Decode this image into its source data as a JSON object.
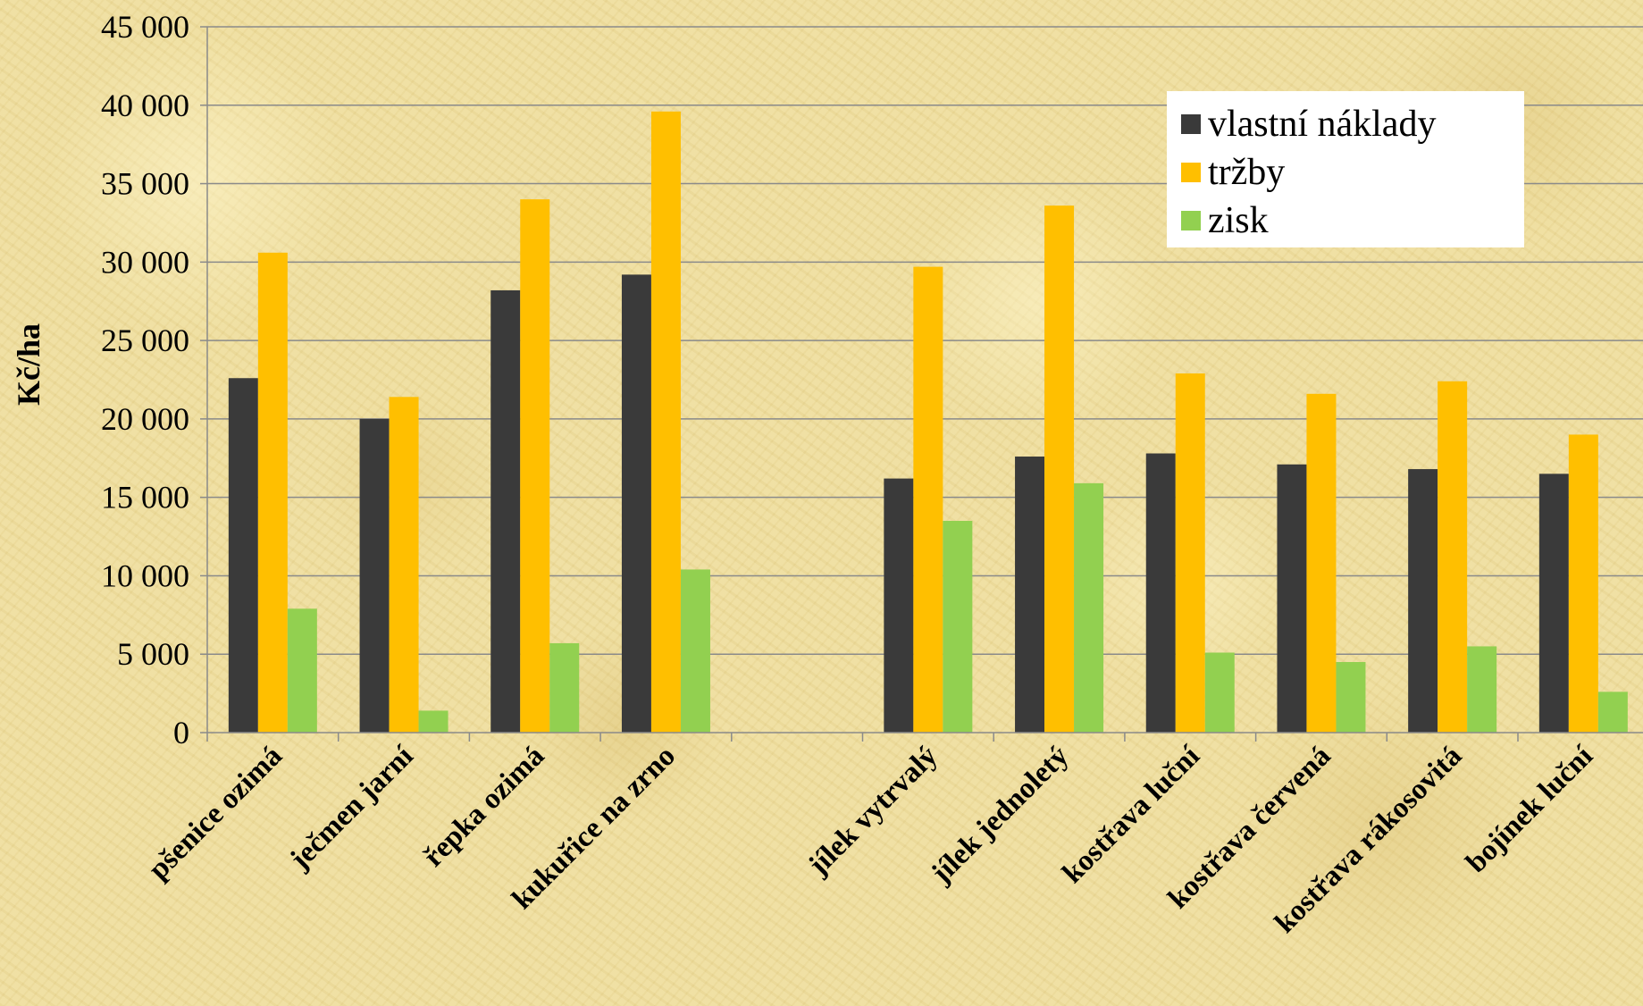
{
  "chart_data": {
    "type": "bar",
    "title": "",
    "xlabel": "",
    "ylabel": "Kč/ha",
    "ylim": [
      0,
      45000
    ],
    "y_ticks": [
      0,
      5000,
      10000,
      15000,
      20000,
      25000,
      30000,
      35000,
      40000,
      45000
    ],
    "y_tick_labels": [
      "0",
      "5 000",
      "10 000",
      "15 000",
      "20 000",
      "25 000",
      "30 000",
      "35 000",
      "40 000",
      "45 000"
    ],
    "grid": true,
    "legend_position": "top-right",
    "categories": [
      "pšenice ozimá",
      "ječmen jarní",
      "řepka ozimá",
      "kukuřice na zrno",
      "",
      "jílek vytrvalý",
      "jílek jednoletý",
      "kostřava luční",
      "kostřava červená",
      "kostřava rákosovitá",
      "bojínek luční"
    ],
    "series": [
      {
        "name": "vlastní náklady",
        "color": "#3a3a3a",
        "values": [
          22600,
          20000,
          28200,
          29200,
          null,
          16200,
          17600,
          17800,
          17100,
          16800,
          16500
        ]
      },
      {
        "name": "tržby",
        "color": "#ffbf00",
        "values": [
          30600,
          21400,
          34000,
          39600,
          null,
          29700,
          33600,
          22900,
          21600,
          22400,
          19000
        ]
      },
      {
        "name": "zisk",
        "color": "#92d050",
        "values": [
          7900,
          1400,
          5700,
          10400,
          null,
          13500,
          15900,
          5100,
          4500,
          5500,
          2600
        ]
      }
    ]
  }
}
